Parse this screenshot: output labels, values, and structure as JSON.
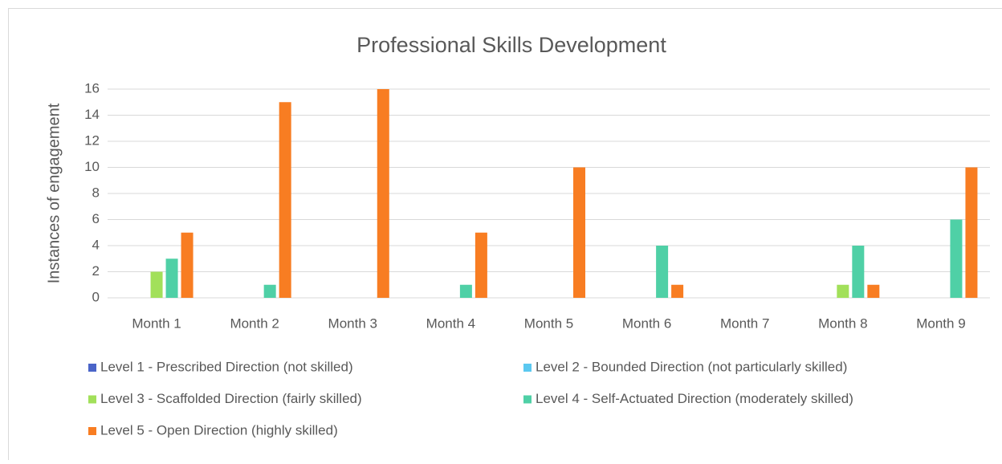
{
  "chart_data": {
    "type": "bar",
    "title": "Professional Skills Development",
    "y_label": "Instances of engagement",
    "categories": [
      "Month 1",
      "Month 2",
      "Month 3",
      "Month 4",
      "Month 5",
      "Month 6",
      "Month 7",
      "Month 8",
      "Month 9"
    ],
    "series": [
      {
        "name": "Level 1 - Prescribed Direction (not skilled)",
        "color": "#4a64c8",
        "values": [
          0,
          0,
          0,
          0,
          0,
          0,
          0,
          0,
          0
        ]
      },
      {
        "name": "Level 2 - Bounded Direction (not particularly skilled)",
        "color": "#5bc8f0",
        "values": [
          0,
          0,
          0,
          0,
          0,
          0,
          0,
          0,
          0
        ]
      },
      {
        "name": "Level 3 - Scaffolded Direction (fairly skilled)",
        "color": "#a2e05a",
        "values": [
          2,
          0,
          0,
          0,
          0,
          0,
          0,
          1,
          0
        ]
      },
      {
        "name": "Level 4 - Self-Actuated Direction (moderately skilled)",
        "color": "#4fd0a6",
        "values": [
          3,
          1,
          0,
          1,
          0,
          4,
          0,
          4,
          6
        ]
      },
      {
        "name": "Level 5 - Open Direction (highly skilled)",
        "color": "#f87d22",
        "values": [
          5,
          15,
          16,
          5,
          10,
          1,
          0,
          1,
          10
        ]
      }
    ],
    "ylim": [
      0,
      16
    ],
    "yticks": [
      0,
      2,
      4,
      6,
      8,
      10,
      12,
      14,
      16
    ],
    "grid": true
  }
}
